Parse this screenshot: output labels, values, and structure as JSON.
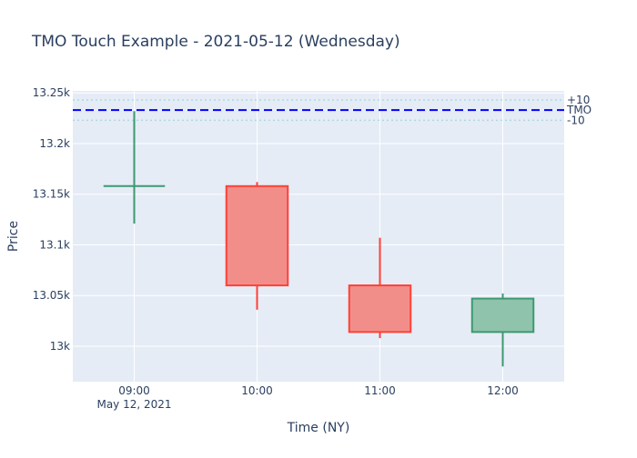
{
  "chart_data": {
    "type": "candlestick",
    "title": "TMO Touch Example - 2021-05-12 (Wednesday)",
    "xlabel": "Time (NY)",
    "ylabel": "Price",
    "x_ticks": [
      "09:00",
      "10:00",
      "11:00",
      "12:00"
    ],
    "x_subtick": "May 12, 2021",
    "y_ticks": [
      {
        "value": 13000,
        "label": "13k"
      },
      {
        "value": 13050,
        "label": "13.05k"
      },
      {
        "value": 13100,
        "label": "13.1k"
      },
      {
        "value": 13150,
        "label": "13.15k"
      },
      {
        "value": 13200,
        "label": "13.2k"
      },
      {
        "value": 13250,
        "label": "13.25k"
      }
    ],
    "ylim": [
      12965,
      13252
    ],
    "candles": [
      {
        "time": "09:00",
        "open": 13158,
        "high": 13232,
        "low": 13121,
        "close": 13158
      },
      {
        "time": "10:00",
        "open": 13158,
        "high": 13162,
        "low": 13036,
        "close": 13060
      },
      {
        "time": "11:00",
        "open": 13060,
        "high": 13107,
        "low": 13008,
        "close": 13014
      },
      {
        "time": "12:00",
        "open": 13014,
        "high": 13052,
        "low": 12980,
        "close": 13047
      }
    ],
    "reference_lines": [
      {
        "label": "+10",
        "value": 13243,
        "style": "dotted",
        "color": "#add8e6"
      },
      {
        "label": "TMO",
        "value": 13233,
        "style": "dashed",
        "color": "#0000ff"
      },
      {
        "label": "-10",
        "value": 13223,
        "style": "dotted",
        "color": "#add8e6"
      }
    ],
    "colors": {
      "increasing_line": "#3d9970",
      "increasing_fill": "#8fc3ab",
      "decreasing_line": "#ff4136",
      "decreasing_fill": "#f28e8a",
      "plot_bg": "#e5ecf6",
      "grid": "#ffffff",
      "text": "#2a3f5f"
    },
    "grid": true
  }
}
